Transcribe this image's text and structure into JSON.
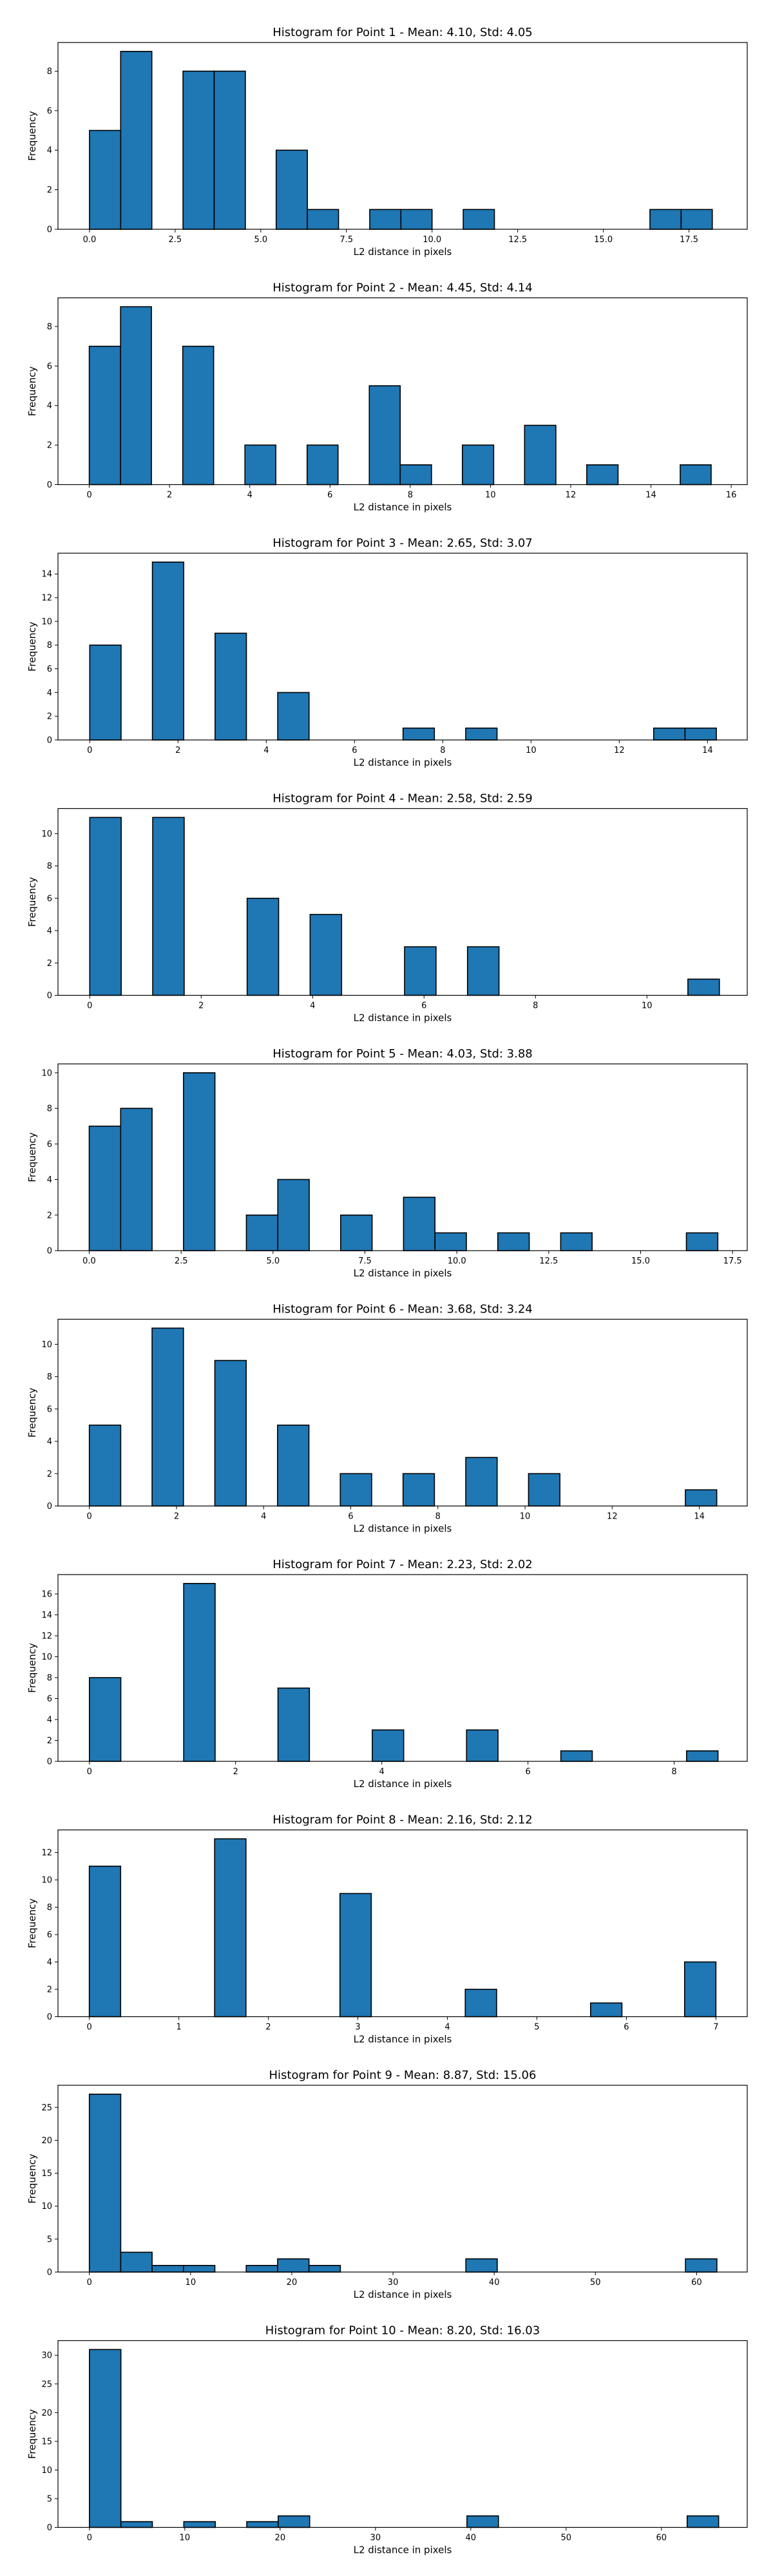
{
  "chart_data": [
    {
      "type": "histogram",
      "title": "Histogram for Point 1 - Mean: 4.10, Std: 4.05",
      "xlabel": "L2 distance in pixels",
      "ylabel": "Frequency",
      "xlim": [
        -0.92,
        19.2
      ],
      "ylim": [
        0,
        9.45
      ],
      "xticks": [
        0.0,
        2.5,
        5.0,
        7.5,
        10.0,
        12.5,
        15.0,
        17.5
      ],
      "xtick_labels": [
        "0.0",
        "2.5",
        "5.0",
        "7.5",
        "10.0",
        "12.5",
        "15.0",
        "17.5"
      ],
      "yticks": [
        0,
        2,
        4,
        6,
        8
      ],
      "bin_edges": [
        0.0,
        0.91,
        1.82,
        2.73,
        3.64,
        4.55,
        5.45,
        6.36,
        7.27,
        8.18,
        9.09,
        10.0,
        10.91,
        11.82,
        12.73,
        13.64,
        14.55,
        15.45,
        16.36,
        17.27,
        18.18
      ],
      "counts": [
        5,
        9,
        0,
        8,
        8,
        0,
        4,
        1,
        0,
        1,
        1,
        0,
        1,
        0,
        0,
        0,
        0,
        0,
        1,
        1
      ]
    },
    {
      "type": "histogram",
      "title": "Histogram for Point 2 - Mean: 4.45, Std: 4.14",
      "xlabel": "L2 distance in pixels",
      "ylabel": "Frequency",
      "xlim": [
        -0.78,
        16.4
      ],
      "ylim": [
        0,
        9.45
      ],
      "xticks": [
        0,
        2,
        4,
        6,
        8,
        10,
        12,
        14,
        16
      ],
      "xtick_labels": [
        "0",
        "2",
        "4",
        "6",
        "8",
        "10",
        "12",
        "14",
        "16"
      ],
      "yticks": [
        0,
        2,
        4,
        6,
        8
      ],
      "bin_edges": [
        0.0,
        0.78,
        1.55,
        2.33,
        3.1,
        3.88,
        4.65,
        5.43,
        6.2,
        6.98,
        7.75,
        8.53,
        9.3,
        10.08,
        10.85,
        11.63,
        12.4,
        13.18,
        13.95,
        14.73,
        15.5
      ],
      "counts": [
        7,
        9,
        0,
        7,
        0,
        2,
        0,
        2,
        0,
        5,
        1,
        0,
        2,
        0,
        3,
        0,
        1,
        0,
        0,
        1
      ]
    },
    {
      "type": "histogram",
      "title": "Histogram for Point 3 - Mean: 2.65, Std: 3.07",
      "xlabel": "L2 distance in pixels",
      "ylabel": "Frequency",
      "xlim": [
        -0.72,
        14.9
      ],
      "ylim": [
        0,
        15.75
      ],
      "xticks": [
        0,
        2,
        4,
        6,
        8,
        10,
        12,
        14
      ],
      "xtick_labels": [
        "0",
        "2",
        "4",
        "6",
        "8",
        "10",
        "12",
        "14"
      ],
      "yticks": [
        0,
        2,
        4,
        6,
        8,
        10,
        12,
        14
      ],
      "bin_edges": [
        0.0,
        0.71,
        1.42,
        2.13,
        2.84,
        3.55,
        4.26,
        4.97,
        5.68,
        6.39,
        7.1,
        7.81,
        8.52,
        9.23,
        9.94,
        10.65,
        11.36,
        12.07,
        12.78,
        13.49,
        14.2
      ],
      "counts": [
        8,
        0,
        15,
        0,
        9,
        0,
        4,
        0,
        0,
        0,
        1,
        0,
        1,
        0,
        0,
        0,
        0,
        0,
        1,
        1
      ]
    },
    {
      "type": "histogram",
      "title": "Histogram for Point 4 - Mean: 2.58, Std: 2.59",
      "xlabel": "L2 distance in pixels",
      "ylabel": "Frequency",
      "xlim": [
        -0.57,
        11.8
      ],
      "ylim": [
        0,
        11.55
      ],
      "xticks": [
        0,
        2,
        4,
        6,
        8,
        10
      ],
      "xtick_labels": [
        "0",
        "2",
        "4",
        "6",
        "8",
        "10"
      ],
      "yticks": [
        0,
        2,
        4,
        6,
        8,
        10
      ],
      "bin_edges": [
        0.0,
        0.565,
        1.13,
        1.695,
        2.26,
        2.825,
        3.39,
        3.955,
        4.52,
        5.085,
        5.65,
        6.215,
        6.78,
        7.345,
        7.91,
        8.475,
        9.04,
        9.605,
        10.17,
        10.735,
        11.3
      ],
      "counts": [
        11,
        0,
        11,
        0,
        0,
        6,
        0,
        5,
        0,
        0,
        3,
        0,
        3,
        0,
        0,
        0,
        0,
        0,
        0,
        1
      ]
    },
    {
      "type": "histogram",
      "title": "Histogram for Point 5 - Mean: 4.03, Std: 3.88",
      "xlabel": "L2 distance in pixels",
      "ylabel": "Frequency",
      "xlim": [
        -0.85,
        17.9
      ],
      "ylim": [
        0,
        10.5
      ],
      "xticks": [
        0.0,
        2.5,
        5.0,
        7.5,
        10.0,
        12.5,
        15.0,
        17.5
      ],
      "xtick_labels": [
        "0.0",
        "2.5",
        "5.0",
        "7.5",
        "10.0",
        "12.5",
        "15.0",
        "17.5"
      ],
      "yticks": [
        0,
        2,
        4,
        6,
        8,
        10
      ],
      "bin_edges": [
        0.0,
        0.855,
        1.71,
        2.565,
        3.42,
        4.275,
        5.13,
        5.985,
        6.84,
        7.695,
        8.55,
        9.405,
        10.26,
        11.115,
        11.97,
        12.825,
        13.68,
        14.535,
        15.39,
        16.245,
        17.1
      ],
      "counts": [
        7,
        8,
        0,
        10,
        0,
        2,
        4,
        0,
        2,
        0,
        3,
        1,
        0,
        1,
        0,
        1,
        0,
        0,
        0,
        1
      ]
    },
    {
      "type": "histogram",
      "title": "Histogram for Point 6 - Mean: 3.68, Std: 3.24",
      "xlabel": "L2 distance in pixels",
      "ylabel": "Frequency",
      "xlim": [
        -0.72,
        15.1
      ],
      "ylim": [
        0,
        11.55
      ],
      "xticks": [
        0,
        2,
        4,
        6,
        8,
        10,
        12,
        14
      ],
      "xtick_labels": [
        "0",
        "2",
        "4",
        "6",
        "8",
        "10",
        "12",
        "14"
      ],
      "yticks": [
        0,
        2,
        4,
        6,
        8,
        10
      ],
      "bin_edges": [
        0.0,
        0.72,
        1.44,
        2.16,
        2.88,
        3.6,
        4.32,
        5.04,
        5.76,
        6.48,
        7.2,
        7.92,
        8.64,
        9.36,
        10.08,
        10.8,
        11.52,
        12.24,
        12.96,
        13.68,
        14.4
      ],
      "counts": [
        5,
        0,
        11,
        0,
        9,
        0,
        5,
        0,
        2,
        0,
        2,
        0,
        3,
        0,
        2,
        0,
        0,
        0,
        0,
        1
      ]
    },
    {
      "type": "histogram",
      "title": "Histogram for Point 7 - Mean: 2.23, Std: 2.02",
      "xlabel": "L2 distance in pixels",
      "ylabel": "Frequency",
      "xlim": [
        -0.43,
        9.0
      ],
      "ylim": [
        0,
        17.85
      ],
      "xticks": [
        0,
        2,
        4,
        6,
        8
      ],
      "xtick_labels": [
        "0",
        "2",
        "4",
        "6",
        "8"
      ],
      "yticks": [
        0,
        2,
        4,
        6,
        8,
        10,
        12,
        14,
        16
      ],
      "bin_edges": [
        0.0,
        0.43,
        0.86,
        1.29,
        1.72,
        2.15,
        2.58,
        3.01,
        3.44,
        3.87,
        4.3,
        4.73,
        5.16,
        5.59,
        6.02,
        6.45,
        6.88,
        7.31,
        7.74,
        8.17,
        8.6
      ],
      "counts": [
        8,
        0,
        0,
        17,
        0,
        0,
        7,
        0,
        0,
        3,
        0,
        0,
        3,
        0,
        0,
        1,
        0,
        0,
        0,
        1
      ]
    },
    {
      "type": "histogram",
      "title": "Histogram for Point 8 - Mean: 2.16, Std: 2.12",
      "xlabel": "L2 distance in pixels",
      "ylabel": "Frequency",
      "xlim": [
        -0.35,
        7.35
      ],
      "ylim": [
        0,
        13.65
      ],
      "xticks": [
        0,
        1,
        2,
        3,
        4,
        5,
        6,
        7
      ],
      "xtick_labels": [
        "0",
        "1",
        "2",
        "3",
        "4",
        "5",
        "6",
        "7"
      ],
      "yticks": [
        0,
        2,
        4,
        6,
        8,
        10,
        12
      ],
      "bin_edges": [
        0.0,
        0.35,
        0.7,
        1.05,
        1.4,
        1.75,
        2.1,
        2.45,
        2.8,
        3.15,
        3.5,
        3.85,
        4.2,
        4.55,
        4.9,
        5.25,
        5.6,
        5.95,
        6.3,
        6.65,
        7.0
      ],
      "counts": [
        11,
        0,
        0,
        0,
        13,
        0,
        0,
        0,
        9,
        0,
        0,
        0,
        2,
        0,
        0,
        0,
        1,
        0,
        0,
        4
      ]
    },
    {
      "type": "histogram",
      "title": "Histogram for Point 9 - Mean: 8.87, Std: 15.06",
      "xlabel": "L2 distance in pixels",
      "ylabel": "Frequency",
      "xlim": [
        -3.1,
        65.0
      ],
      "ylim": [
        0,
        28.35
      ],
      "xticks": [
        0,
        10,
        20,
        30,
        40,
        50,
        60
      ],
      "xtick_labels": [
        "0",
        "10",
        "20",
        "30",
        "40",
        "50",
        "60"
      ],
      "yticks": [
        0,
        5,
        10,
        15,
        20,
        25
      ],
      "bin_edges": [
        0.0,
        3.1,
        6.2,
        9.3,
        12.4,
        15.5,
        18.6,
        21.7,
        24.8,
        27.9,
        31.0,
        34.1,
        37.2,
        40.3,
        43.4,
        46.5,
        49.6,
        52.7,
        55.8,
        58.9,
        62.0
      ],
      "counts": [
        27,
        3,
        1,
        1,
        0,
        1,
        2,
        1,
        0,
        0,
        0,
        0,
        2,
        0,
        0,
        0,
        0,
        0,
        0,
        2
      ]
    },
    {
      "type": "histogram",
      "title": "Histogram for Point 10 - Mean: 8.20, Std: 16.03",
      "xlabel": "L2 distance in pixels",
      "ylabel": "Frequency",
      "xlim": [
        -3.3,
        69.0
      ],
      "ylim": [
        0,
        32.55
      ],
      "xticks": [
        0,
        10,
        20,
        30,
        40,
        50,
        60
      ],
      "xtick_labels": [
        "0",
        "10",
        "20",
        "30",
        "40",
        "50",
        "60"
      ],
      "yticks": [
        0,
        5,
        10,
        15,
        20,
        25,
        30
      ],
      "bin_edges": [
        0.0,
        3.3,
        6.6,
        9.9,
        13.2,
        16.5,
        19.8,
        23.1,
        26.4,
        29.7,
        33.0,
        36.3,
        39.6,
        42.9,
        46.2,
        49.5,
        52.8,
        56.1,
        59.4,
        62.7,
        66.0
      ],
      "counts": [
        31,
        1,
        0,
        1,
        0,
        1,
        2,
        0,
        0,
        0,
        0,
        0,
        2,
        0,
        0,
        0,
        0,
        0,
        0,
        2
      ]
    }
  ],
  "style": {
    "bar_fill": "#1f77b4",
    "bar_edge": "#000000",
    "axis_color": "#000000",
    "background": "#ffffff"
  }
}
